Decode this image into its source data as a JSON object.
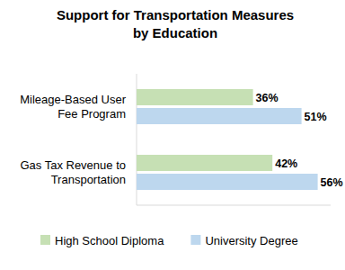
{
  "chart_data": {
    "type": "bar",
    "orientation": "horizontal",
    "title": "Support for Transportation Measures\nby Education",
    "categories": [
      "Mileage-Based User Fee Program",
      "Gas Tax Revenue to Transportation"
    ],
    "series": [
      {
        "name": "High School Diploma",
        "color": "#c6e0b4",
        "values": [
          36,
          42
        ],
        "value_labels": [
          "36%",
          "42%"
        ]
      },
      {
        "name": "University Degree",
        "color": "#bdd7ee",
        "values": [
          51,
          56
        ],
        "value_labels": [
          "51%",
          "56%"
        ]
      }
    ],
    "xlim": [
      0,
      60
    ],
    "grid": false,
    "legend": "bottom",
    "data_labels": true,
    "tick_labels": "y"
  }
}
